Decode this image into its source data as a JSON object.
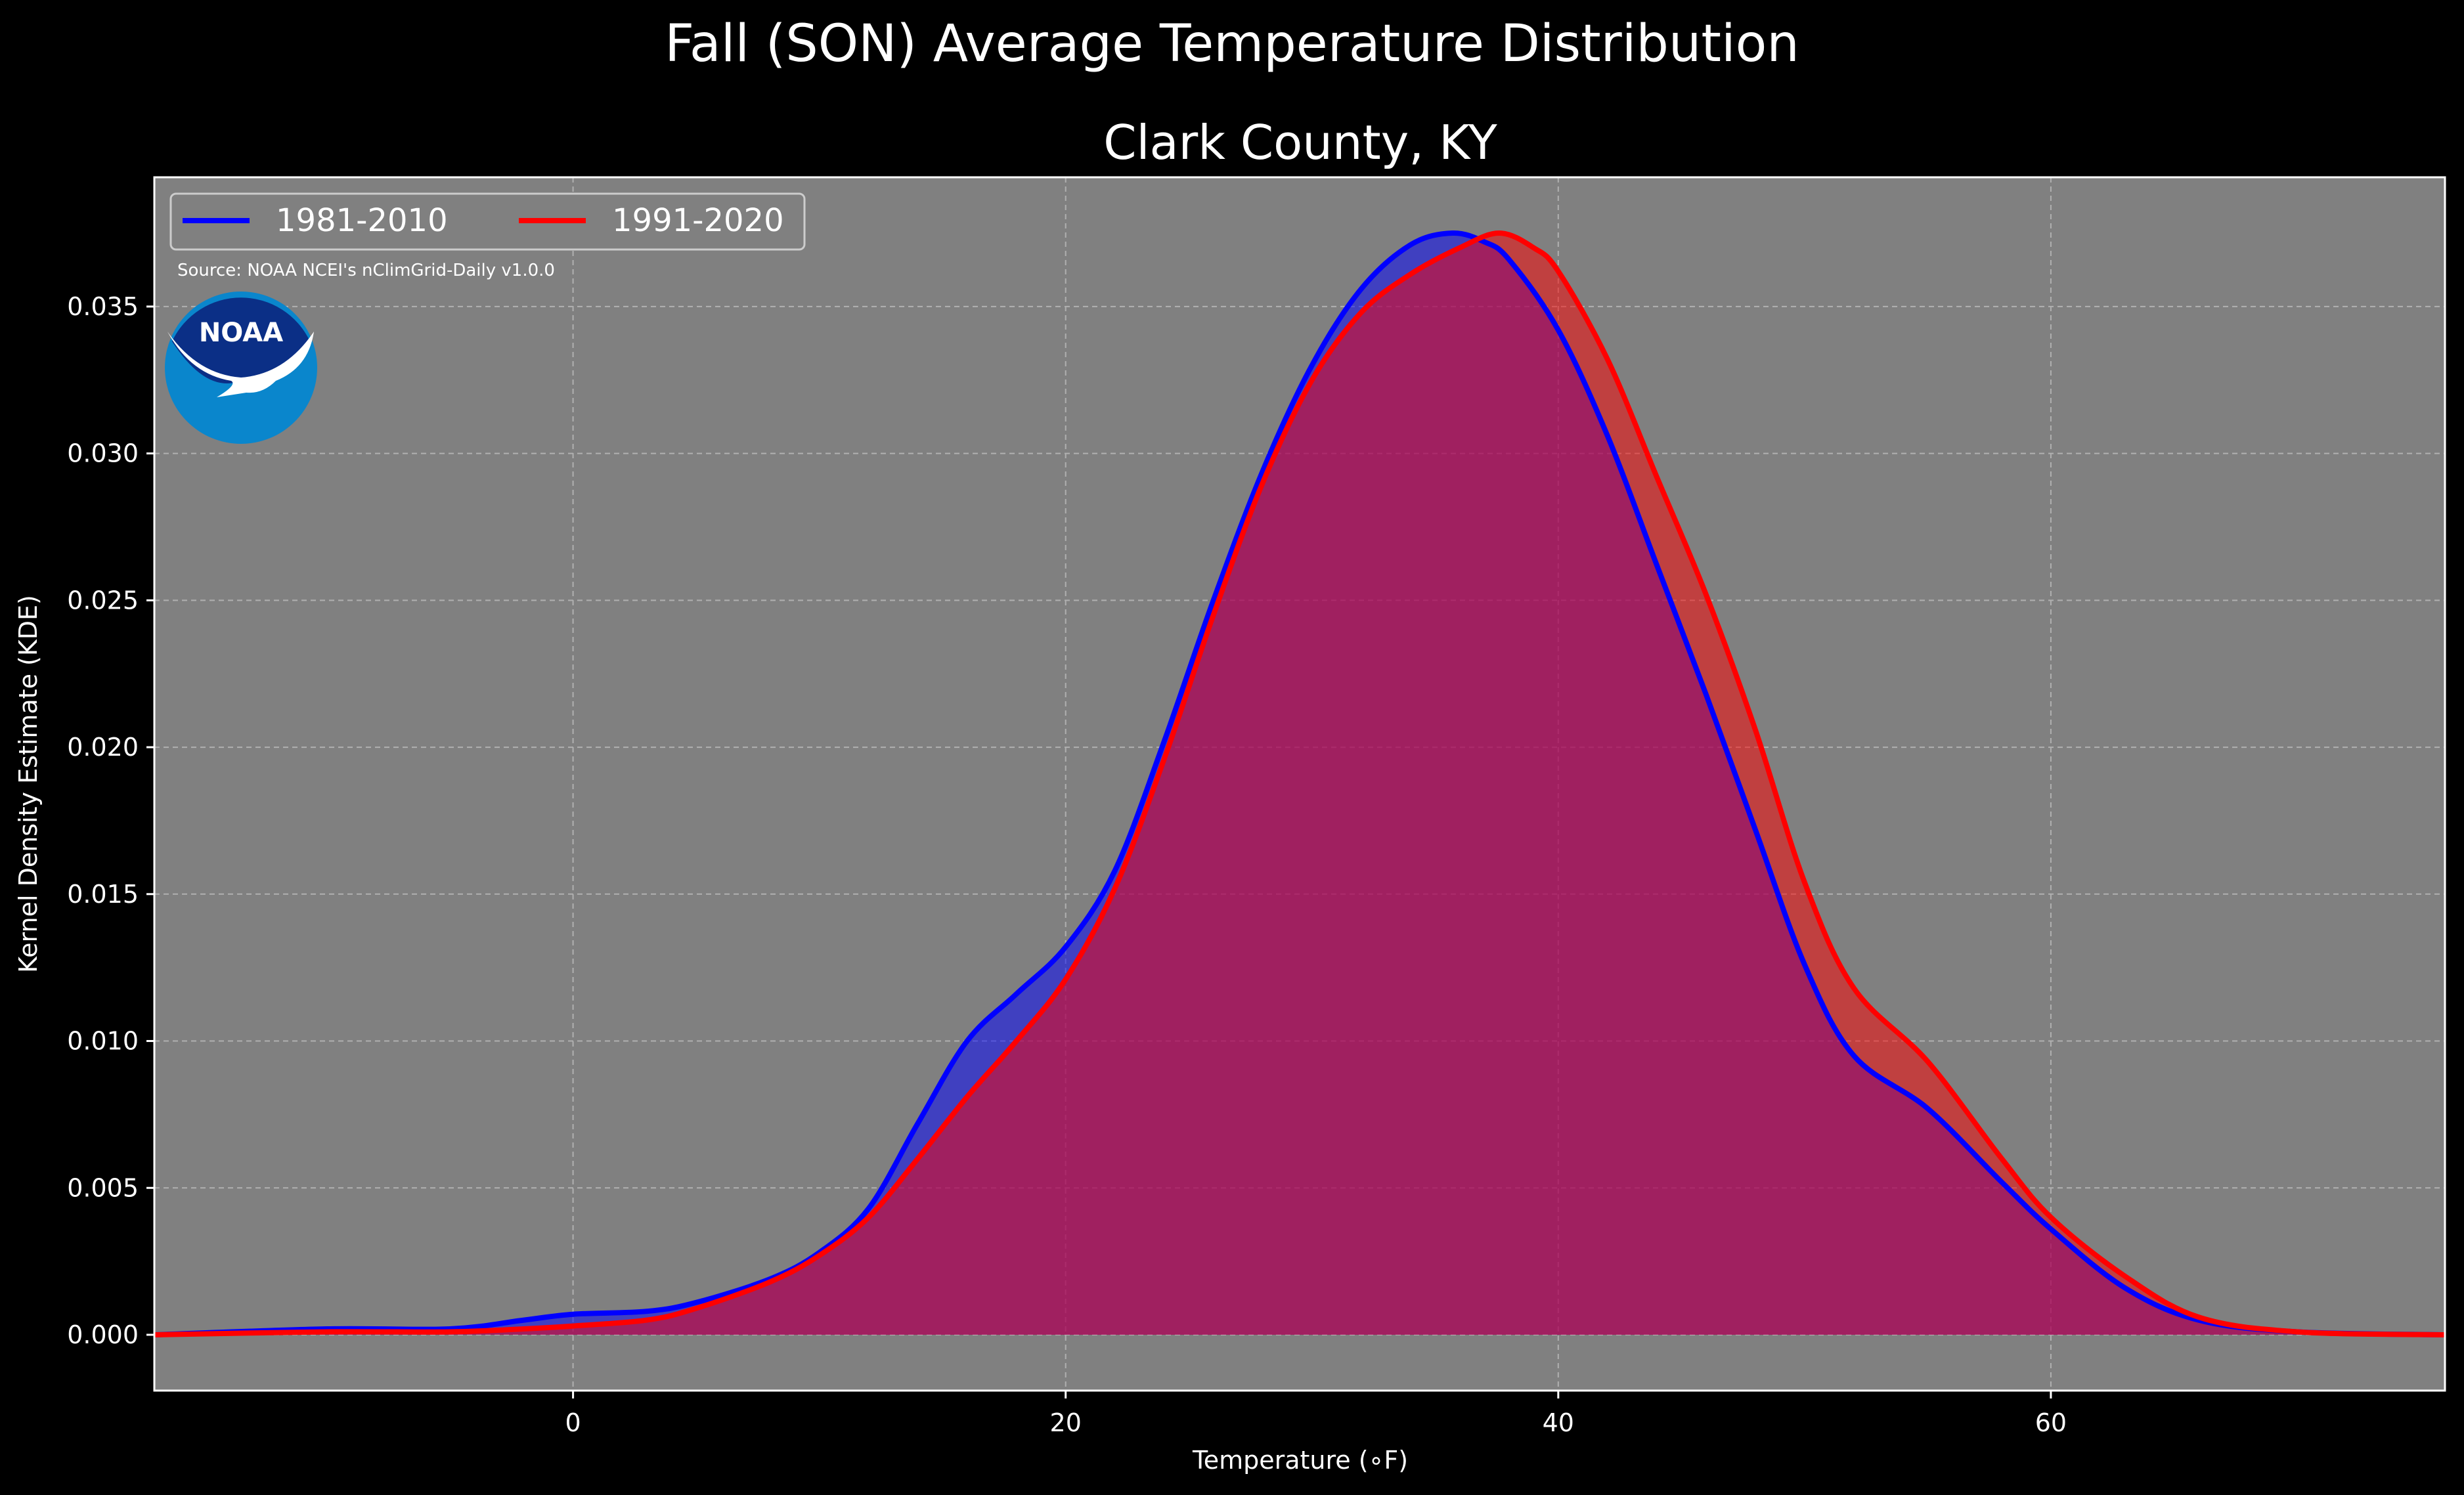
{
  "chart_data": {
    "type": "area",
    "title": "Fall (SON) Average Temperature Distribution",
    "subtitle": "Clark County, KY",
    "xlabel": "Temperature (∘F)",
    "ylabel": "Kernel Density Estimate (KDE)",
    "xlim": [
      -17,
      76
    ],
    "ylim": [
      -0.0019,
      0.0394
    ],
    "xticks": [
      0,
      20,
      40,
      60
    ],
    "xtick_labels": [
      "0",
      "20",
      "40",
      "60"
    ],
    "yticks": [
      0.0,
      0.005,
      0.01,
      0.015,
      0.02,
      0.025,
      0.03,
      0.035
    ],
    "ytick_labels": [
      "0.000",
      "0.005",
      "0.010",
      "0.015",
      "0.020",
      "0.025",
      "0.030",
      "0.035"
    ],
    "grid": true,
    "legend_position": "top-left",
    "source_note": "Source: NOAA NCEI's nClimGrid-Daily v1.0.0",
    "logo_text": "NOAA",
    "colors": {
      "background": "#000000",
      "plot_bg": "#808080",
      "series1": "#0000ff",
      "series2": "#ff0000"
    },
    "series": [
      {
        "name": "1981-2010",
        "color": "#0000ff",
        "x": [
          -17,
          -10,
          -5,
          -2,
          0,
          3,
          5,
          8,
          10,
          12,
          14,
          16,
          18,
          20,
          22,
          24,
          26,
          28,
          30,
          32,
          34,
          35.7,
          37,
          38,
          40,
          42,
          44,
          46,
          48,
          50,
          52,
          55,
          58,
          60,
          63,
          66,
          70,
          76
        ],
        "y": [
          0.0,
          0.0002,
          0.0002,
          0.0005,
          0.0007,
          0.0008,
          0.0011,
          0.0019,
          0.0028,
          0.0043,
          0.0072,
          0.01,
          0.0116,
          0.0132,
          0.0158,
          0.0202,
          0.025,
          0.0294,
          0.033,
          0.0356,
          0.0371,
          0.0375,
          0.0372,
          0.0366,
          0.0342,
          0.0306,
          0.0262,
          0.0218,
          0.0172,
          0.0126,
          0.0095,
          0.0077,
          0.0052,
          0.0036,
          0.0016,
          0.0005,
          0.0001,
          0.0
        ]
      },
      {
        "name": "1991-2020",
        "color": "#ff0000",
        "x": [
          -17,
          -10,
          -5,
          -2,
          0,
          3,
          5,
          8,
          10,
          12,
          14,
          16,
          18,
          20,
          22,
          24,
          26,
          28,
          30,
          32,
          34,
          36,
          37.6,
          39,
          40,
          42,
          44,
          46,
          48,
          50,
          52,
          55,
          58,
          60,
          63,
          66,
          70,
          76
        ],
        "y": [
          0.0,
          0.0001,
          0.0001,
          0.0002,
          0.0003,
          0.0005,
          0.0009,
          0.0018,
          0.0027,
          0.004,
          0.006,
          0.0081,
          0.01,
          0.0121,
          0.0152,
          0.0196,
          0.0245,
          0.029,
          0.0325,
          0.0348,
          0.0361,
          0.037,
          0.0375,
          0.037,
          0.0362,
          0.0332,
          0.0292,
          0.0252,
          0.0206,
          0.0154,
          0.0118,
          0.0093,
          0.006,
          0.004,
          0.002,
          0.0006,
          0.0001,
          0.0
        ]
      }
    ]
  }
}
